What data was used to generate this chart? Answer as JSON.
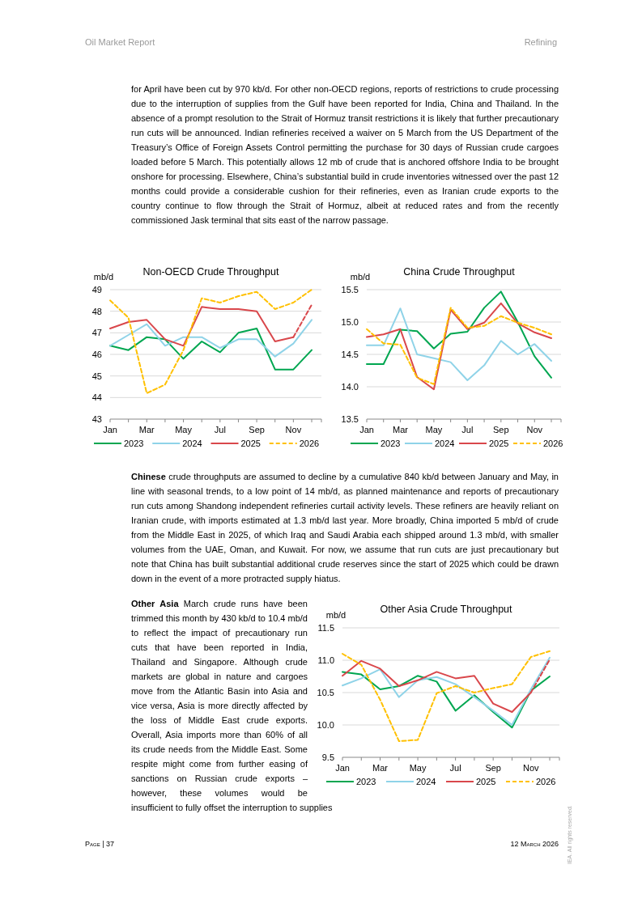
{
  "chart_data": [
    {
      "type": "line",
      "title": "Non-OECD Crude Throughput",
      "ylabel": "mb/d",
      "categories": [
        "Jan",
        null,
        "Mar",
        null,
        "May",
        null,
        "Jul",
        null,
        "Sep",
        null,
        "Nov",
        null
      ],
      "ylim": [
        43,
        49
      ],
      "yticks": [
        43,
        44,
        45,
        46,
        47,
        48,
        49
      ],
      "grid": "y",
      "legend": "bottom",
      "series": [
        {
          "name": "2023",
          "color": "#00a650",
          "line_style": "solid",
          "values": [
            46.4,
            46.2,
            46.8,
            46.7,
            45.8,
            46.6,
            46.1,
            47.0,
            47.2,
            45.3,
            45.3,
            46.2
          ]
        },
        {
          "name": "2024",
          "color": "#8fd3e8",
          "line_style": "solid",
          "values": [
            46.4,
            46.9,
            47.4,
            46.4,
            46.8,
            46.8,
            46.3,
            46.7,
            46.7,
            45.9,
            46.5,
            47.6
          ]
        },
        {
          "name": "2025",
          "color": "#d9474b",
          "line_style": "solid",
          "values": [
            47.2,
            47.5,
            47.6,
            46.7,
            46.4,
            48.2,
            48.1,
            48.1,
            48.0,
            46.6,
            46.8,
            null
          ]
        },
        {
          "color": "#d9474b",
          "line_style": "dashed",
          "values": [
            null,
            null,
            null,
            null,
            null,
            null,
            null,
            null,
            null,
            null,
            46.8,
            48.3
          ]
        },
        {
          "name": "2026",
          "color": "#ffc000",
          "line_style": "dashed",
          "values": [
            48.5,
            47.7,
            44.2,
            44.6,
            46.2,
            48.6,
            48.4,
            48.7,
            48.9,
            48.1,
            48.4,
            49.0
          ]
        }
      ],
      "annotations": [
        "Oil Market Report",
        "Refining",
        "for April have been cut by 970 kb/d. For other non-OECD regions, reports of restrictions to crude processing due to the interruption of supplies from the Gulf have been reported for India, China and Thailand. In the absence of a prompt resolution to the Strait of Hormuz transit restrictions it is likely that further precautionary run cuts will be announced. Indian refineries received a waiver on 5 March from the US Department of the Treasury’s Office of Foreign Assets Control permitting the purchase for 30 days of Russian crude cargoes loaded before 5 March. This potentially allows 12 mb of crude that is anchored offshore India to be brought onshore for processing. Elsewhere, China’s substantial build in crude inventories witnessed over the past 12 months could provide a considerable cushion for their refineries, even as Iranian crude exports to the country continue to flow through the Strait of Hormuz, albeit at reduced rates and from the recently commissioned Jask terminal that sits east of the narrow passage."
      ]
    },
    {
      "type": "line",
      "title": "China Crude Throughput",
      "ylabel": "mb/d",
      "categories": [
        "Jan",
        null,
        "Mar",
        null,
        "May",
        null,
        "Jul",
        null,
        "Sep",
        null,
        "Nov",
        null
      ],
      "ylim": [
        13.5,
        15.5
      ],
      "yticks": [
        13.5,
        {
          "value": 14,
          "label": "14.0"
        },
        14.5,
        {
          "value": 15,
          "label": "15.0"
        },
        15.5
      ],
      "grid": "y",
      "legend": "bottom",
      "series": [
        {
          "name": "2023",
          "color": "#00a650",
          "line_style": "solid",
          "values": [
            14.35,
            14.35,
            14.88,
            14.86,
            14.59,
            14.82,
            14.85,
            15.22,
            15.47,
            15.0,
            14.47,
            14.14
          ]
        },
        {
          "name": "2024",
          "color": "#8fd3e8",
          "line_style": "solid",
          "values": [
            14.64,
            14.64,
            15.21,
            14.5,
            14.44,
            14.38,
            14.1,
            14.33,
            14.71,
            14.5,
            14.66,
            14.4
          ]
        },
        {
          "name": "2025",
          "color": "#d9474b",
          "line_style": "solid",
          "values": [
            14.77,
            14.81,
            14.89,
            14.15,
            13.96,
            15.19,
            14.89,
            14.99,
            15.29,
            14.98,
            14.84,
            14.75
          ]
        },
        {
          "name": "2026",
          "color": "#ffc000",
          "line_style": "dashed",
          "values": [
            14.89,
            14.67,
            14.65,
            14.14,
            14.04,
            15.22,
            14.91,
            14.94,
            15.09,
            14.99,
            14.91,
            14.81
          ]
        }
      ],
      "annotations": [
        "Chinese crude throughputs are assumed to decline by a cumulative 840 kb/d between January and May, in line with seasonal trends, to a low point of 14 mb/d, as planned maintenance and reports of precautionary run cuts among Shandong independent refineries curtail activity levels. These refiners are heavily reliant on Iranian crude, with imports estimated at 1.3 mb/d last year. More broadly, China imported 5 mb/d of crude from the Middle East in 2025, of which Iraq and Saudi Arabia each shipped around 1.3 mb/d, with smaller volumes from the UAE, Oman, and Kuwait. For now, we assume that run cuts are just precautionary but note that China has built substantial additional crude reserves since the start of 2025 which could be drawn down in the event of a more protracted supply hiatus."
      ]
    },
    {
      "type": "line",
      "title": "Other Asia Crude Throughput",
      "ylabel": "mb/d",
      "categories": [
        "Jan",
        null,
        "Mar",
        null,
        "May",
        null,
        "Jul",
        null,
        "Sep",
        null,
        "Nov",
        null
      ],
      "ylim": [
        9.5,
        11.5
      ],
      "yticks": [
        9.5,
        {
          "value": 10,
          "label": "10.0"
        },
        10.5,
        {
          "value": 11,
          "label": "11.0"
        },
        11.5
      ],
      "grid": "y",
      "legend": "bottom",
      "series": [
        {
          "name": "2023",
          "color": "#00a650",
          "line_style": "solid",
          "values": [
            10.82,
            10.78,
            10.55,
            10.6,
            10.76,
            10.67,
            10.22,
            10.46,
            10.2,
            9.96,
            10.53,
            10.75
          ]
        },
        {
          "name": "2024",
          "color": "#8fd3e8",
          "line_style": "solid",
          "values": [
            10.61,
            10.72,
            10.86,
            10.43,
            10.69,
            10.74,
            10.63,
            10.43,
            10.22,
            10.0,
            10.55,
            11.04
          ]
        },
        {
          "name": "2025",
          "color": "#d9474b",
          "line_style": "solid",
          "values": [
            10.76,
            10.99,
            10.87,
            10.6,
            10.69,
            10.82,
            10.72,
            10.76,
            10.33,
            10.2,
            10.5,
            null
          ]
        },
        {
          "color": "#d9474b",
          "line_style": "dashed",
          "values": [
            null,
            null,
            null,
            null,
            null,
            null,
            null,
            null,
            null,
            null,
            10.5,
            11.01
          ]
        },
        {
          "name": "2026",
          "color": "#ffc000",
          "line_style": "dashed",
          "values": [
            11.1,
            10.93,
            10.39,
            9.75,
            9.77,
            10.49,
            10.6,
            10.5,
            10.57,
            10.63,
            11.05,
            11.14
          ]
        }
      ],
      "annotations": [
        "Other Asia March crude runs have been trimmed this month by 430 kb/d to 10.4 mb/d to reflect the impact of precautionary run cuts that have been reported in India, Thailand and Singapore. Although crude markets are global in nature and cargoes move from the Atlantic Basin into Asia and vice versa, Asia is more directly affected by the loss of Middle East crude exports. Overall, Asia imports more than 60% of all its crude needs from the Middle East. Some respite might come from further easing of sanctions on Russian crude exports – however, these volumes would be insufficient to fully offset the interruption to supplies",
        "Page | 37",
        "12 March 2026",
        "IEA. All rights reserved."
      ]
    }
  ]
}
